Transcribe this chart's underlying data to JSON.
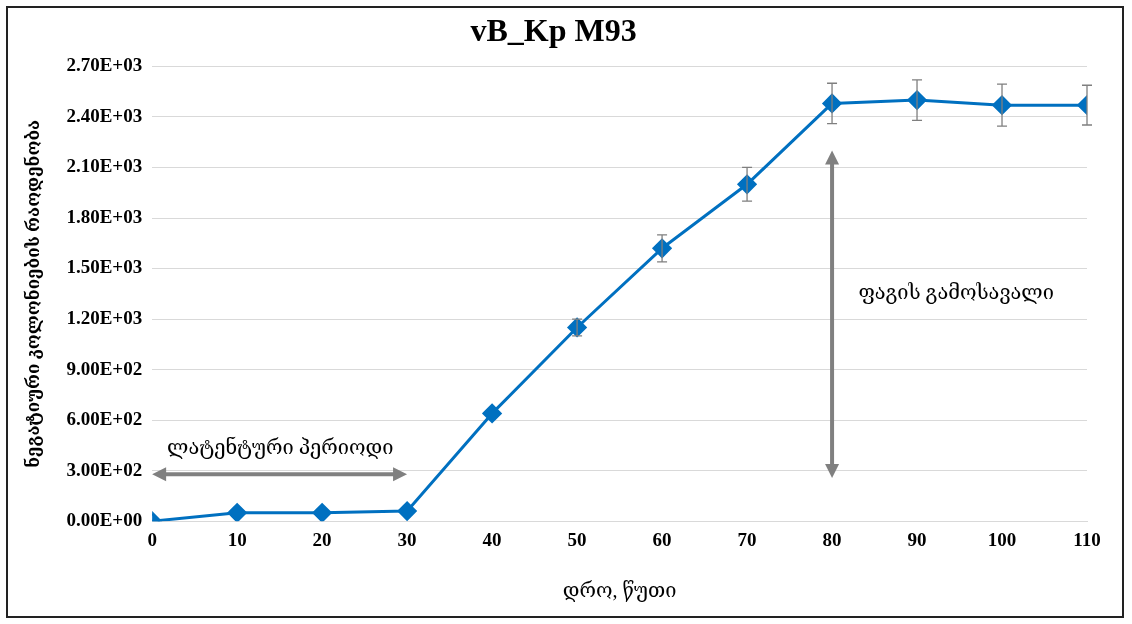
{
  "chart_data": {
    "type": "line",
    "title": "vB_Kp M93",
    "xlabel": "დრო, წუთი",
    "ylabel": "ნეგატიური კოლონიების რაოდენობა",
    "x": [
      0,
      10,
      20,
      30,
      40,
      50,
      60,
      70,
      80,
      90,
      100,
      110
    ],
    "series": [
      {
        "color": "#0070c0",
        "values": [
          0,
          50,
          50,
          60,
          640,
          1150,
          1620,
          2000,
          2480,
          2500,
          2470,
          2470
        ],
        "errors": [
          null,
          null,
          null,
          null,
          null,
          50,
          80,
          100,
          120,
          120,
          125,
          118
        ]
      }
    ],
    "xlim": [
      0,
      110
    ],
    "xticks": [
      0,
      10,
      20,
      30,
      40,
      50,
      60,
      70,
      80,
      90,
      100,
      110
    ],
    "ylim": [
      0,
      2700
    ],
    "yticks": [
      {
        "value": 0,
        "label": "0.00E+00"
      },
      {
        "value": 300,
        "label": "3.00E+02"
      },
      {
        "value": 600,
        "label": "6.00E+02"
      },
      {
        "value": 900,
        "label": "9.00E+02"
      },
      {
        "value": 1200,
        "label": "1.20E+03"
      },
      {
        "value": 1500,
        "label": "1.50E+03"
      },
      {
        "value": 1800,
        "label": "1.80E+03"
      },
      {
        "value": 2100,
        "label": "2.10E+03"
      },
      {
        "value": 2400,
        "label": "2.40E+03"
      },
      {
        "value": 2700,
        "label": "2.70E+03"
      }
    ],
    "annotations": [
      "ლატენტური პერიოდი",
      "ფაგის გამოსავალი"
    ],
    "grid": "y",
    "legend": false,
    "marker": "diamond",
    "line_style": "solid"
  }
}
